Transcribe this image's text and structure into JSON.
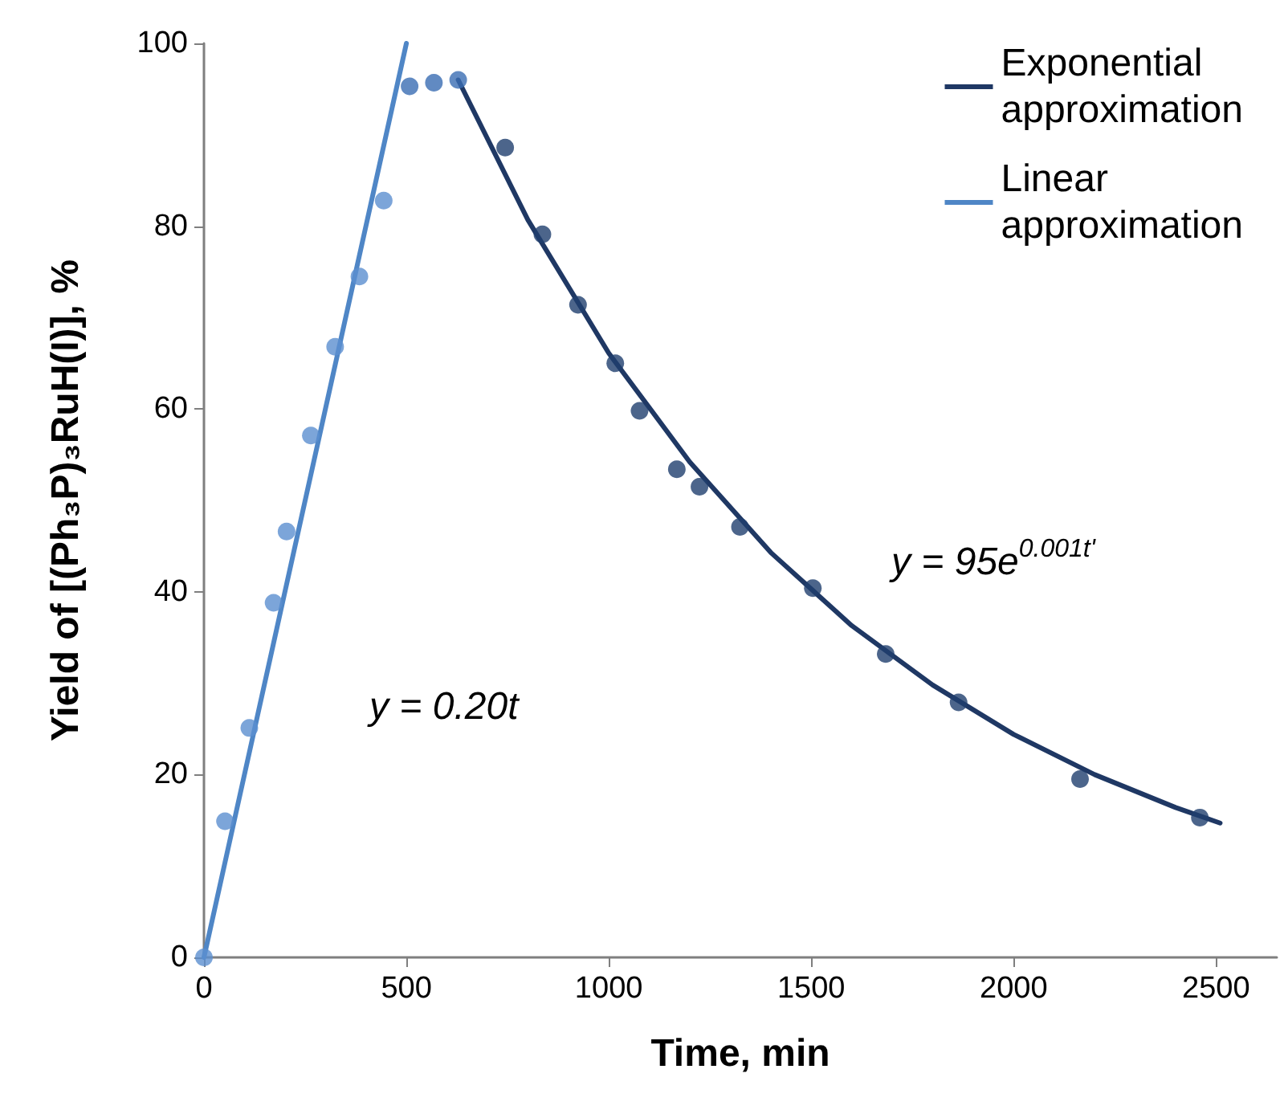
{
  "chart_data": {
    "type": "scatter",
    "xlabel": "Time, min",
    "ylabel": "Yield of [(Ph₃P)₃RuH(I)], %",
    "xlim": [
      0,
      2650
    ],
    "xticks": [
      0,
      500,
      1000,
      1500,
      2000,
      2500
    ],
    "ylim": [
      0,
      100
    ],
    "yticks": [
      0,
      20,
      40,
      60,
      80,
      100
    ],
    "grid": false,
    "legend": "top right",
    "series": [
      {
        "color": "#5b8fd0",
        "marker": "circle",
        "x": [
          0,
          52,
          112,
          172,
          204,
          264,
          324,
          384,
          444
        ],
        "values": [
          0,
          14.9,
          25.1,
          38.8,
          46.6,
          57.1,
          66.8,
          74.5,
          82.8
        ]
      },
      {
        "color": "#3a6db3",
        "marker": "circle",
        "x": [
          508,
          568,
          628
        ],
        "values": [
          95.3,
          95.7,
          96.0
        ]
      },
      {
        "color": "#1f3f6e",
        "marker": "circle",
        "x": [
          744,
          836,
          924,
          1016,
          1076,
          1168,
          1224,
          1324,
          1504,
          1684,
          1864,
          2164,
          2460
        ],
        "values": [
          88.6,
          79.1,
          71.4,
          65.0,
          59.8,
          53.4,
          51.5,
          47.1,
          40.4,
          33.2,
          27.9,
          19.5,
          15.3
        ]
      },
      {
        "type": "line",
        "name": "Exponential approximation",
        "color": "#1f3864",
        "marker": "none",
        "x": [
          628,
          800,
          1000,
          1200,
          1400,
          1600,
          1800,
          2000,
          2200,
          2400,
          2510
        ],
        "values": [
          96,
          80.7,
          66.1,
          54.2,
          44.3,
          36.3,
          29.8,
          24.4,
          20.0,
          16.4,
          14.7
        ]
      },
      {
        "type": "line",
        "name": "Linear approximation",
        "color": "#4f86c6",
        "marker": "none",
        "x": [
          0,
          500
        ],
        "values": [
          0,
          100
        ]
      }
    ],
    "annotations": [
      "y = 0.20t",
      "y = 95e$^{0.001t'}$"
    ]
  }
}
